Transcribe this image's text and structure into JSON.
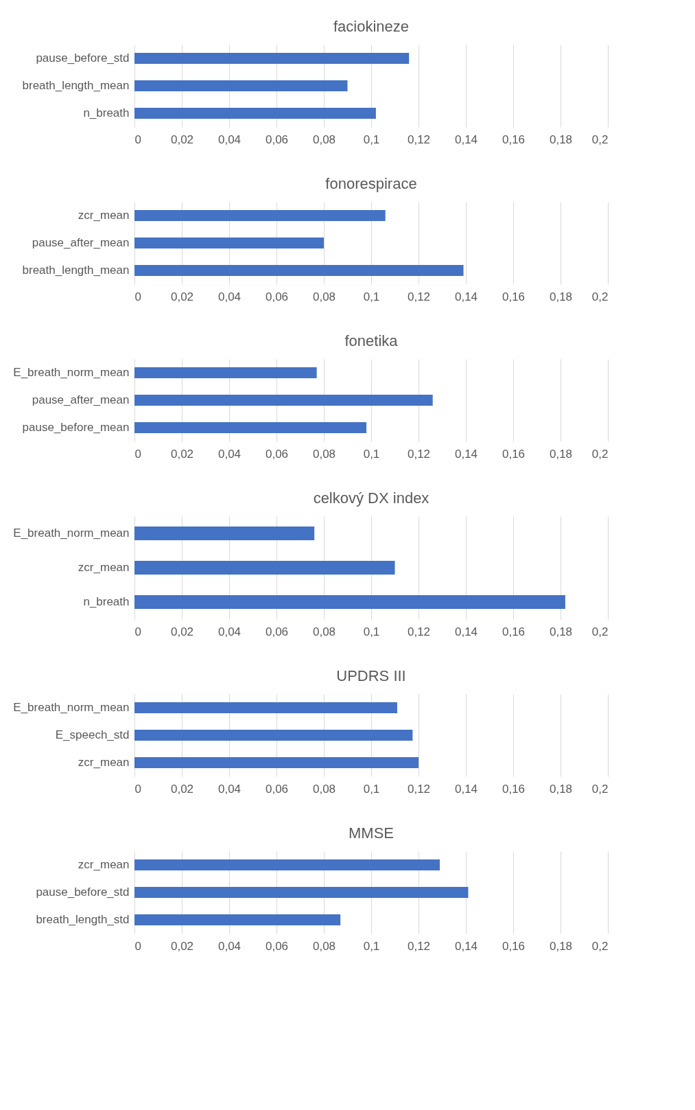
{
  "chart_data": [
    {
      "type": "bar",
      "orientation": "horizontal",
      "title": "faciokineze",
      "categories": [
        "pause_before_std",
        "breath_length_mean",
        "n_breath"
      ],
      "values": [
        0.116,
        0.09,
        0.102
      ],
      "color": "#4472c4",
      "xlim": [
        0,
        0.2
      ],
      "xticks": [
        {
          "value": 0,
          "label": "0"
        },
        {
          "value": 0.02,
          "label": "0,02"
        },
        {
          "value": 0.04,
          "label": "0,04"
        },
        {
          "value": 0.06,
          "label": "0,06"
        },
        {
          "value": 0.08,
          "label": "0,08"
        },
        {
          "value": 0.1,
          "label": "0,1"
        },
        {
          "value": 0.12,
          "label": "0,12"
        },
        {
          "value": 0.14,
          "label": "0,14"
        },
        {
          "value": 0.16,
          "label": "0,16"
        },
        {
          "value": 0.18,
          "label": "0,18"
        },
        {
          "value": 0.2,
          "label": "0,2"
        }
      ],
      "grid": "x"
    },
    {
      "type": "bar",
      "orientation": "horizontal",
      "title": "fonorespirace",
      "categories": [
        "zcr_mean",
        "pause_after_mean",
        "breath_length_mean"
      ],
      "values": [
        0.106,
        0.08,
        0.139
      ],
      "color": "#4472c4",
      "xlim": [
        0,
        0.2
      ],
      "xticks": [
        {
          "value": 0,
          "label": "0"
        },
        {
          "value": 0.02,
          "label": "0,02"
        },
        {
          "value": 0.04,
          "label": "0,04"
        },
        {
          "value": 0.06,
          "label": "0,06"
        },
        {
          "value": 0.08,
          "label": "0,08"
        },
        {
          "value": 0.1,
          "label": "0,1"
        },
        {
          "value": 0.12,
          "label": "0,12"
        },
        {
          "value": 0.14,
          "label": "0,14"
        },
        {
          "value": 0.16,
          "label": "0,16"
        },
        {
          "value": 0.18,
          "label": "0,18"
        },
        {
          "value": 0.2,
          "label": "0,2"
        }
      ],
      "grid": "x"
    },
    {
      "type": "bar",
      "orientation": "horizontal",
      "title": "fonetika",
      "categories": [
        "E_breath_norm_mean",
        "pause_after_mean",
        "pause_before_mean"
      ],
      "values": [
        0.077,
        0.126,
        0.098
      ],
      "color": "#4472c4",
      "xlim": [
        0,
        0.2
      ],
      "xticks": [
        {
          "value": 0,
          "label": "0"
        },
        {
          "value": 0.02,
          "label": "0,02"
        },
        {
          "value": 0.04,
          "label": "0,04"
        },
        {
          "value": 0.06,
          "label": "0,06"
        },
        {
          "value": 0.08,
          "label": "0,08"
        },
        {
          "value": 0.1,
          "label": "0,1"
        },
        {
          "value": 0.12,
          "label": "0,12"
        },
        {
          "value": 0.14,
          "label": "0,14"
        },
        {
          "value": 0.16,
          "label": "0,16"
        },
        {
          "value": 0.18,
          "label": "0,18"
        },
        {
          "value": 0.2,
          "label": "0,2"
        }
      ],
      "grid": "x"
    },
    {
      "type": "bar",
      "orientation": "horizontal",
      "title": "celkový DX index",
      "categories": [
        "E_breath_norm_mean",
        "zcr_mean",
        "n_breath"
      ],
      "values": [
        0.076,
        0.11,
        0.182
      ],
      "color": "#4472c4",
      "xlim": [
        0,
        0.2
      ],
      "xticks": [
        {
          "value": 0,
          "label": "0"
        },
        {
          "value": 0.02,
          "label": "0,02"
        },
        {
          "value": 0.04,
          "label": "0,04"
        },
        {
          "value": 0.06,
          "label": "0,06"
        },
        {
          "value": 0.08,
          "label": "0,08"
        },
        {
          "value": 0.1,
          "label": "0,1"
        },
        {
          "value": 0.12,
          "label": "0,12"
        },
        {
          "value": 0.14,
          "label": "0,14"
        },
        {
          "value": 0.16,
          "label": "0,16"
        },
        {
          "value": 0.18,
          "label": "0,18"
        },
        {
          "value": 0.2,
          "label": "0,2"
        }
      ],
      "grid": "x"
    },
    {
      "type": "bar",
      "orientation": "horizontal",
      "title": "UPDRS III",
      "categories": [
        "E_breath_norm_mean",
        "E_speech_std",
        "zcr_mean"
      ],
      "values": [
        0.111,
        0.1175,
        0.12
      ],
      "color": "#4472c4",
      "xlim": [
        0,
        0.2
      ],
      "xticks": [
        {
          "value": 0,
          "label": "0"
        },
        {
          "value": 0.02,
          "label": "0,02"
        },
        {
          "value": 0.04,
          "label": "0,04"
        },
        {
          "value": 0.06,
          "label": "0,06"
        },
        {
          "value": 0.08,
          "label": "0,08"
        },
        {
          "value": 0.1,
          "label": "0,1"
        },
        {
          "value": 0.12,
          "label": "0,12"
        },
        {
          "value": 0.14,
          "label": "0,14"
        },
        {
          "value": 0.16,
          "label": "0,16"
        },
        {
          "value": 0.18,
          "label": "0,18"
        },
        {
          "value": 0.2,
          "label": "0,2"
        }
      ],
      "grid": "x"
    },
    {
      "type": "bar",
      "orientation": "horizontal",
      "title": "MMSE",
      "categories": [
        "zcr_mean",
        "pause_before_std",
        "breath_length_std"
      ],
      "values": [
        0.129,
        0.141,
        0.087
      ],
      "color": "#4472c4",
      "xlim": [
        0,
        0.2
      ],
      "xticks": [
        {
          "value": 0,
          "label": "0"
        },
        {
          "value": 0.02,
          "label": "0,02"
        },
        {
          "value": 0.04,
          "label": "0,04"
        },
        {
          "value": 0.06,
          "label": "0,06"
        },
        {
          "value": 0.08,
          "label": "0,08"
        },
        {
          "value": 0.1,
          "label": "0,1"
        },
        {
          "value": 0.12,
          "label": "0,12"
        },
        {
          "value": 0.14,
          "label": "0,14"
        },
        {
          "value": 0.16,
          "label": "0,16"
        },
        {
          "value": 0.18,
          "label": "0,18"
        },
        {
          "value": 0.2,
          "label": "0,2"
        }
      ],
      "grid": "x"
    }
  ]
}
